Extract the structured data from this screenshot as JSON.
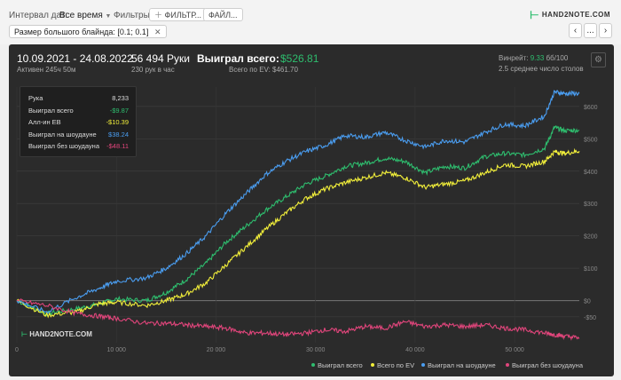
{
  "toolbar": {
    "date_interval_label": "Интервал дат:",
    "date_interval_value": "Все время",
    "filters_label": "Фильтры:",
    "filter_button": "ФИЛЬТР...",
    "file_button": "ФАЙЛ...",
    "chip_label": "Размер большого блайнда: [0.1; 0.1]",
    "chip_close": "✕",
    "nav_prev": "‹",
    "nav_more": "...",
    "nav_next": "›",
    "logo_text": "HAND2NOTE.COM"
  },
  "stats": {
    "date_range": "10.09.2021 - 24.08.2022",
    "active_time": "Активен 245ч 50м",
    "hands": "56 494 Руки",
    "hands_per_hour": "230 рук в час",
    "won_total_label": "Выиграл всего:",
    "won_total_value": "$526.81",
    "ev_total": "Всего по EV: $461.70",
    "winrate_label": "Винрейт:",
    "winrate_value": "9.33",
    "winrate_unit": "бб/100",
    "avg_tables": "2.5 среднее число столов"
  },
  "tooltip": {
    "rows": [
      {
        "label": "Рука",
        "value": "8,233",
        "color": "#dddddd"
      },
      {
        "label": "Выиграл всего",
        "value": "-$9.87",
        "color": "#2ebd6e"
      },
      {
        "label": "Алл-ин EB",
        "value": "-$10.39",
        "color": "#f1ee3a"
      },
      {
        "label": "Выиграл на шоудауне",
        "value": "$38.24",
        "color": "#4a9df0"
      },
      {
        "label": "Выиграл без шоудауна",
        "value": "-$48.11",
        "color": "#e0457b"
      }
    ]
  },
  "watermark": "HAND2NOTE.COM",
  "chart_data": {
    "type": "line",
    "x_ticks": [
      0,
      10000,
      20000,
      30000,
      40000,
      50000
    ],
    "x_tick_labels": [
      "0",
      "10 000",
      "20 000",
      "30 000",
      "40 000",
      "50 000"
    ],
    "xlim": [
      0,
      56494
    ],
    "y_ticks": [
      -50,
      0,
      100,
      200,
      300,
      400,
      500,
      600
    ],
    "y_tick_labels": [
      "-$50",
      "$0",
      "$100",
      "$200",
      "$300",
      "$400",
      "$500",
      "$600"
    ],
    "ylim": [
      -130,
      660
    ],
    "grid": true,
    "legend_position": "bottom-right",
    "series": [
      {
        "name": "Выиграл всего",
        "color": "#2ebd6e",
        "x": [
          0,
          3000,
          6000,
          8233,
          10000,
          13000,
          15000,
          17000,
          19000,
          21000,
          23000,
          25000,
          27000,
          29000,
          31000,
          33000,
          35000,
          37000,
          39000,
          41000,
          43000,
          45000,
          47000,
          49000,
          51000,
          53000,
          54000,
          55000,
          56494
        ],
        "y": [
          0,
          -40,
          -25,
          -10,
          5,
          0,
          25,
          65,
          115,
          180,
          230,
          280,
          320,
          360,
          385,
          415,
          425,
          440,
          430,
          395,
          415,
          410,
          445,
          455,
          450,
          470,
          535,
          525,
          527
        ]
      },
      {
        "name": "Всего по EV",
        "color": "#f1ee3a",
        "x": [
          0,
          3000,
          6000,
          8233,
          10000,
          13000,
          15000,
          17000,
          19000,
          21000,
          23000,
          25000,
          27000,
          29000,
          31000,
          33000,
          35000,
          37000,
          39000,
          41000,
          43000,
          45000,
          47000,
          49000,
          51000,
          53000,
          54000,
          55000,
          56494
        ],
        "y": [
          0,
          -45,
          -35,
          -10,
          -5,
          -15,
          0,
          20,
          55,
          110,
          165,
          220,
          270,
          315,
          345,
          365,
          380,
          395,
          380,
          350,
          360,
          370,
          395,
          420,
          415,
          430,
          460,
          455,
          462
        ]
      },
      {
        "name": "Выиграл на шоудауне",
        "color": "#4a9df0",
        "x": [
          0,
          3000,
          6000,
          8233,
          10000,
          13000,
          15000,
          17000,
          19000,
          21000,
          23000,
          25000,
          27000,
          29000,
          31000,
          33000,
          35000,
          37000,
          39000,
          41000,
          43000,
          45000,
          47000,
          49000,
          51000,
          53000,
          54000,
          55000,
          56494
        ],
        "y": [
          0,
          -35,
          10,
          38,
          60,
          70,
          100,
          145,
          200,
          270,
          330,
          390,
          430,
          460,
          480,
          510,
          505,
          520,
          495,
          475,
          495,
          490,
          520,
          545,
          540,
          570,
          645,
          640,
          640
        ]
      },
      {
        "name": "Выиграл без шоудауна",
        "color": "#e0457b",
        "x": [
          0,
          3000,
          6000,
          8233,
          10000,
          13000,
          15000,
          17000,
          19000,
          21000,
          23000,
          25000,
          27000,
          29000,
          31000,
          33000,
          35000,
          37000,
          39000,
          41000,
          43000,
          45000,
          47000,
          49000,
          51000,
          53000,
          54000,
          55000,
          56494
        ],
        "y": [
          0,
          -15,
          -40,
          -48,
          -55,
          -70,
          -70,
          -75,
          -80,
          -85,
          -100,
          -100,
          -105,
          -100,
          -90,
          -95,
          -80,
          -85,
          -65,
          -80,
          -75,
          -80,
          -75,
          -85,
          -90,
          -100,
          -105,
          -110,
          -115
        ]
      }
    ]
  }
}
